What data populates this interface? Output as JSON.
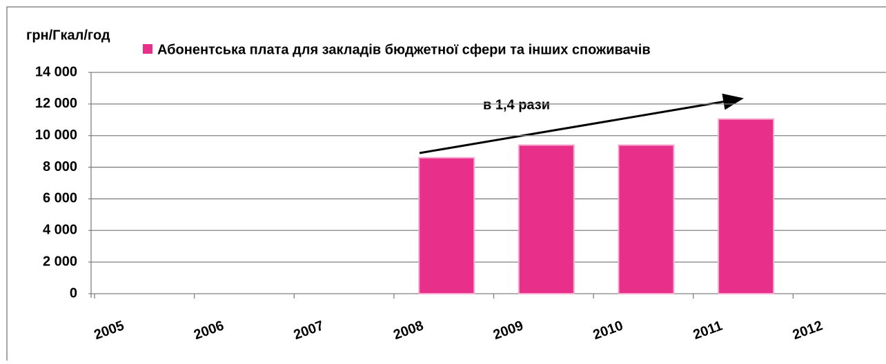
{
  "chart_data": {
    "type": "bar",
    "y_label": "грн/Гкал/год",
    "annotation": "в 1,4 рази",
    "categories": [
      "2005",
      "2006",
      "2007",
      "2008",
      "2009",
      "2010",
      "2011",
      "2012"
    ],
    "series": [
      {
        "name": "Абонентська плата для закладів бюджетної сфери та інших споживачів",
        "color": "#e8308a",
        "values": [
          null,
          null,
          null,
          8600,
          9400,
          9400,
          11050,
          null
        ]
      }
    ],
    "ylim": [
      0,
      14000
    ],
    "yticks": [
      0,
      {
        "value": 2000,
        "label": "2 000"
      },
      {
        "value": 4000,
        "label": "4 000"
      },
      {
        "value": 6000,
        "label": "6 000"
      },
      {
        "value": 8000,
        "label": "8 000"
      },
      {
        "value": 10000,
        "label": "10 000"
      },
      {
        "value": 12000,
        "label": "12 000"
      },
      {
        "value": 14000,
        "label": "14 000"
      }
    ],
    "grid": true,
    "legend": "top"
  }
}
